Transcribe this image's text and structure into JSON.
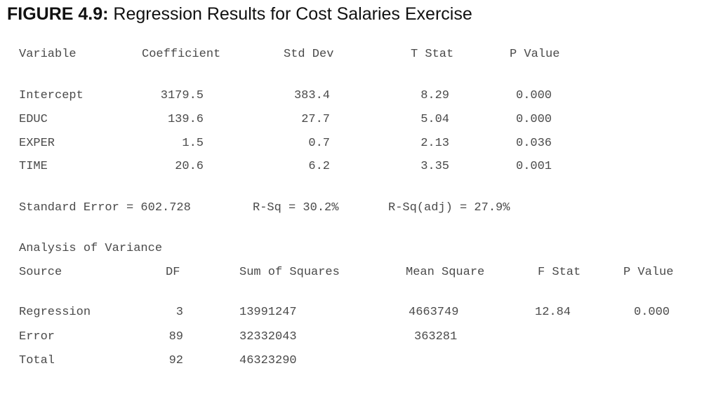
{
  "figure": {
    "label": "FIGURE 4.9:",
    "title": " Regression Results for Cost Salaries Exercise"
  },
  "coef_table": {
    "headers": {
      "variable": "Variable",
      "coefficient": "Coefficient",
      "std_dev": "Std Dev",
      "t_stat": "T Stat",
      "p_value": "P Value"
    },
    "rows": [
      {
        "variable": "Intercept",
        "coefficient": "3179.5",
        "std_dev": "383.4",
        "t_stat": "8.29",
        "p_value": "0.000"
      },
      {
        "variable": "EDUC",
        "coefficient": "139.6",
        "std_dev": "27.7",
        "t_stat": "5.04",
        "p_value": "0.000"
      },
      {
        "variable": "EXPER",
        "coefficient": "1.5",
        "std_dev": "0.7",
        "t_stat": "2.13",
        "p_value": "0.036"
      },
      {
        "variable": "TIME",
        "coefficient": "20.6",
        "std_dev": "6.2",
        "t_stat": "3.35",
        "p_value": "0.001"
      }
    ]
  },
  "fit_stats": {
    "standard_error": "Standard Error = 602.728",
    "r_sq": "R-Sq = 30.2%",
    "r_sq_adj": "R-Sq(adj) = 27.9%"
  },
  "anova": {
    "heading": "Analysis of Variance",
    "headers": {
      "source": "Source",
      "df": "DF",
      "ss": "Sum of Squares",
      "ms": "Mean Square",
      "f_stat": "F Stat",
      "p_value": "P Value"
    },
    "rows": [
      {
        "source": "Regression",
        "df": "3",
        "ss": "13991247",
        "ms": "4663749",
        "f_stat": "12.84",
        "p_value": "0.000"
      },
      {
        "source": "Error",
        "df": "89",
        "ss": "32332043",
        "ms": "363281",
        "f_stat": "",
        "p_value": ""
      },
      {
        "source": "Total",
        "df": "92",
        "ss": "46323290",
        "ms": "",
        "f_stat": "",
        "p_value": ""
      }
    ]
  }
}
